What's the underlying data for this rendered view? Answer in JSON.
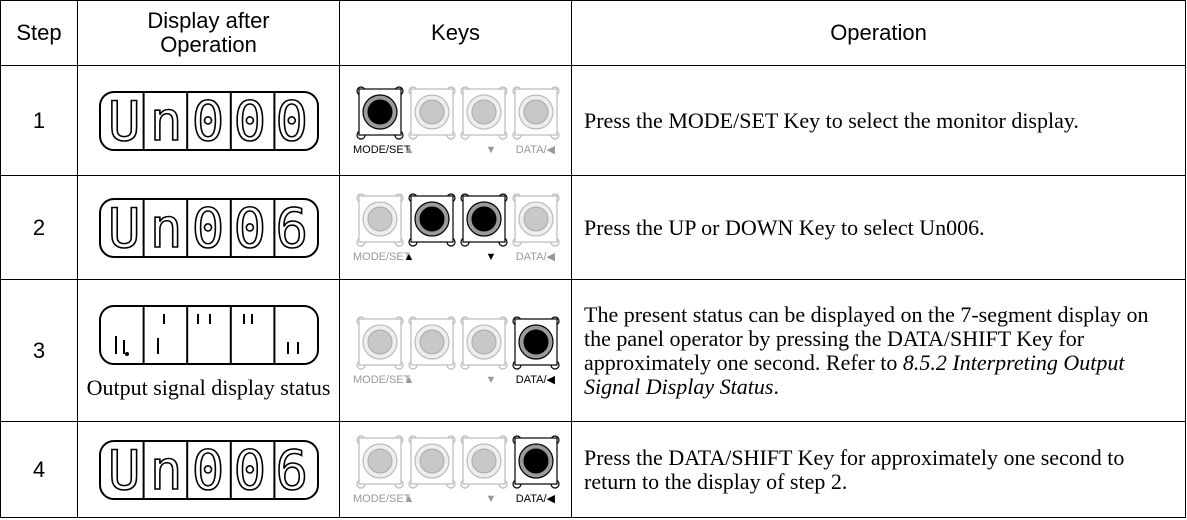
{
  "header": [
    "Step",
    "Display after Operation",
    "Keys",
    "Operation"
  ],
  "key_labels": [
    "MODE/SET",
    "▲",
    "▼",
    "DATA/◀"
  ],
  "rows": [
    {
      "step": "1",
      "display": "Un000",
      "active_keys": [
        0
      ],
      "operation": [
        {
          "text": "Press the MODE/SET Key to select the monitor display.",
          "italic": false
        }
      ]
    },
    {
      "step": "2",
      "display": "Un006",
      "active_keys": [
        1,
        2
      ],
      "operation": [
        {
          "text": "Press the UP or DOWN Key to select Un006.",
          "italic": false
        }
      ]
    },
    {
      "step": "3",
      "display_caption": "Output signal display status",
      "active_keys": [
        3
      ],
      "operation": [
        {
          "text": "The present status can be displayed on the 7-segment display on the panel operator by pressing the DATA/SHIFT Key for approximately one second. Refer to ",
          "italic": false
        },
        {
          "text": "8.5.2 Interpreting Output Signal Display Status",
          "italic": true
        },
        {
          "text": ".",
          "italic": false
        }
      ]
    },
    {
      "step": "4",
      "display": "Un006",
      "active_keys": [
        3
      ],
      "operation": [
        {
          "text": "Press the DATA/SHIFT Key for approximately one second to return to the display of step 2.",
          "italic": false
        }
      ]
    }
  ]
}
